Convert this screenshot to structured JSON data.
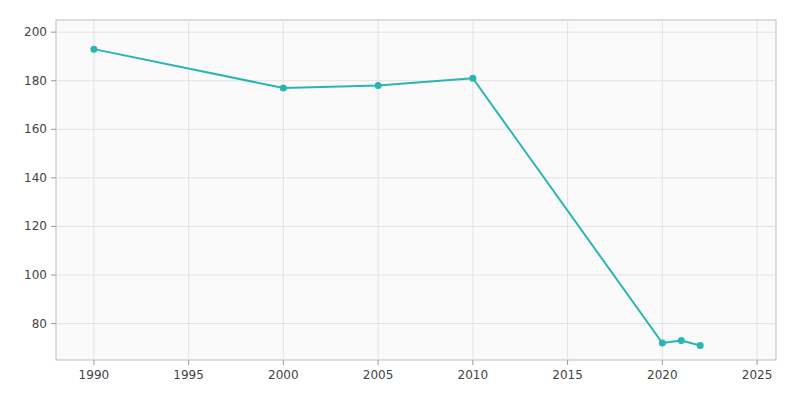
{
  "chart_data": {
    "type": "line",
    "x": [
      1990,
      2000,
      2005,
      2010,
      2020,
      2021,
      2022
    ],
    "values": [
      193,
      177,
      178,
      181,
      72,
      73,
      71
    ],
    "color": "#2AB5B0",
    "marker": "circle",
    "xlim": [
      1988,
      2026
    ],
    "ylim": [
      65,
      205
    ],
    "xticks": [
      1990,
      1995,
      2000,
      2005,
      2010,
      2015,
      2020,
      2025
    ],
    "yticks": [
      80,
      100,
      120,
      140,
      160,
      180,
      200
    ],
    "grid": true
  }
}
